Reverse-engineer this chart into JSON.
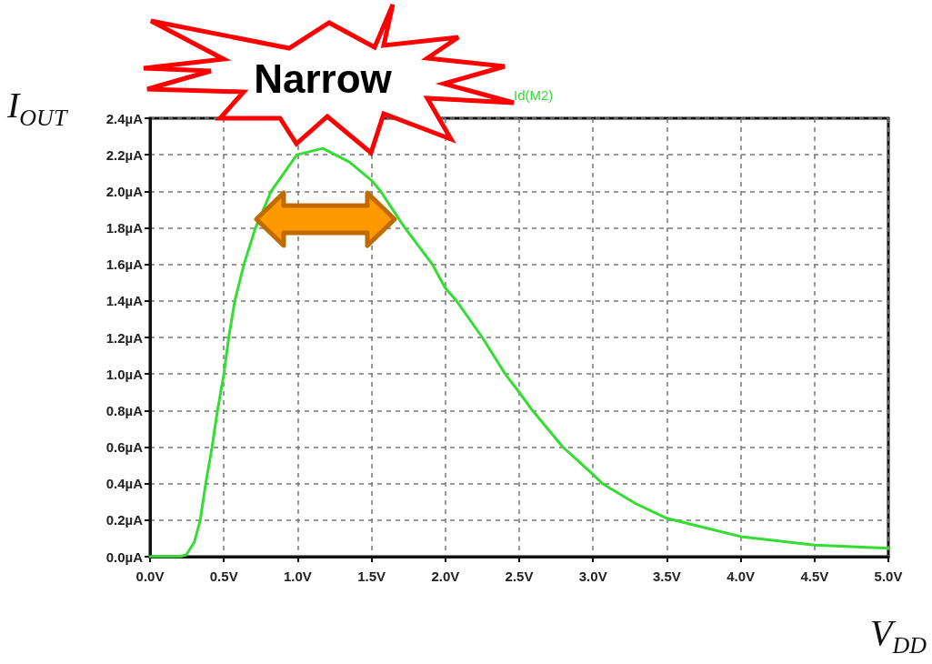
{
  "chart_data": {
    "type": "line",
    "xlabel": "V$_{DD}$",
    "ylabel": "I$_{OUT}$",
    "annotations": [
      "Narrow"
    ],
    "xlim": [
      0,
      5
    ],
    "ylim": [
      0,
      2.4
    ],
    "xticks": [
      {
        "value": 0,
        "label": "0.0V"
      },
      {
        "value": 0.5,
        "label": "0.5V"
      },
      {
        "value": 1,
        "label": "1.0V"
      },
      {
        "value": 1.5,
        "label": "1.5V"
      },
      {
        "value": 2,
        "label": "2.0V"
      },
      {
        "value": 2.5,
        "label": "2.5V"
      },
      {
        "value": 3,
        "label": "3.0V"
      },
      {
        "value": 3.5,
        "label": "3.5V"
      },
      {
        "value": 4,
        "label": "4.0V"
      },
      {
        "value": 4.5,
        "label": "4.5V"
      },
      {
        "value": 5,
        "label": "5.0V"
      }
    ],
    "yticks": [
      {
        "value": 0,
        "label": "0.0µA"
      },
      {
        "value": 0.2,
        "label": "0.2µA"
      },
      {
        "value": 0.4,
        "label": "0.4µA"
      },
      {
        "value": 0.6,
        "label": "0.6µA"
      },
      {
        "value": 0.8,
        "label": "0.8µA"
      },
      {
        "value": 1,
        "label": "1.0µA"
      },
      {
        "value": 1.2,
        "label": "1.2µA"
      },
      {
        "value": 1.4,
        "label": "1.4µA"
      },
      {
        "value": 1.6,
        "label": "1.6µA"
      },
      {
        "value": 1.8,
        "label": "1.8µA"
      },
      {
        "value": 2,
        "label": "2.0µA"
      },
      {
        "value": 2.2,
        "label": "2.2µA"
      },
      {
        "value": 2.4,
        "label": "2.4µA"
      }
    ],
    "grid": true,
    "legend": "top",
    "marker": "none",
    "line_style": "solid",
    "series": [
      {
        "name": "Id(M2)",
        "color": "#33dd33",
        "x": [
          0,
          0.2,
          0.245,
          0.3,
          0.34,
          0.377,
          0.42,
          0.457,
          0.5,
          0.533,
          0.574,
          0.636,
          0.714,
          0.82,
          0.994,
          1.171,
          1.35,
          1.5,
          1.562,
          1.726,
          1.912,
          2,
          2.076,
          2.25,
          2.405,
          2.5,
          2.59,
          2.796,
          3,
          3.064,
          3.29,
          3.5,
          4,
          4.5,
          5
        ],
        "values": [
          0,
          0,
          0.01,
          0.08,
          0.2,
          0.4,
          0.6,
          0.8,
          1.0,
          1.2,
          1.4,
          1.6,
          1.8,
          2.0,
          2.2,
          2.235,
          2.16,
          2.06,
          2.0,
          1.8,
          1.6,
          1.47,
          1.4,
          1.2,
          1.0,
          0.9,
          0.8,
          0.6,
          0.45,
          0.4,
          0.29,
          0.21,
          0.11,
          0.063,
          0.046
        ]
      }
    ]
  }
}
